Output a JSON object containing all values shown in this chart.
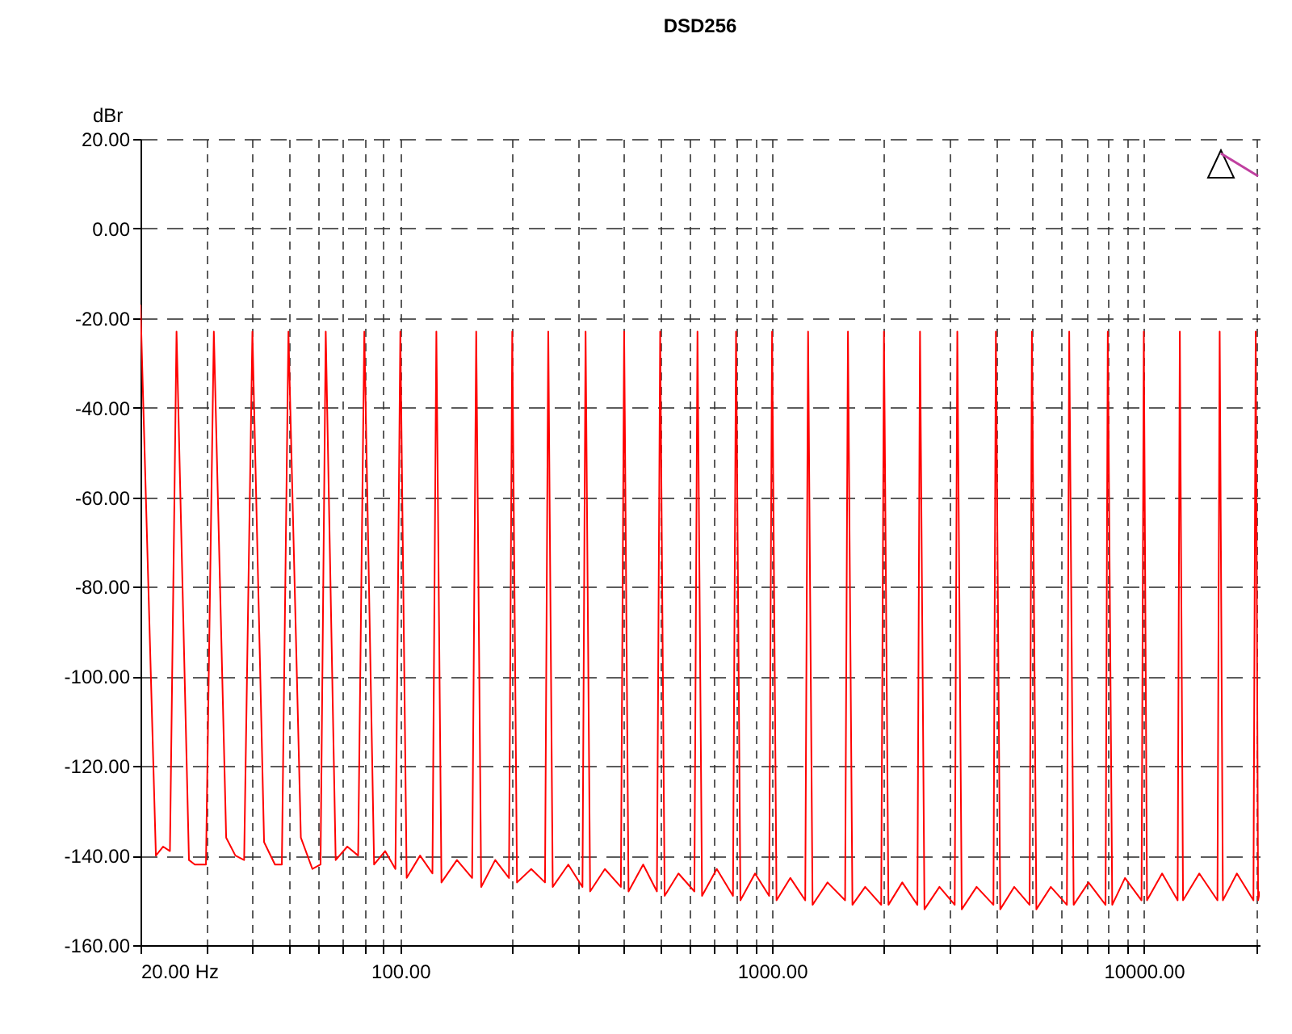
{
  "chart_data": {
    "type": "line",
    "title": "DSD256",
    "ylabel": "dBr",
    "x": [
      20,
      22,
      23,
      24,
      25,
      27,
      28,
      30,
      31.5,
      34,
      36,
      38,
      40,
      43,
      46,
      48,
      50,
      54,
      58,
      61,
      63,
      67,
      72,
      77,
      80,
      85,
      91,
      97,
      100,
      104,
      113,
      122,
      125,
      129,
      142,
      156,
      160,
      165,
      180,
      196,
      200,
      206,
      225,
      245,
      250,
      257,
      283,
      309,
      315,
      324,
      355,
      392,
      400,
      411,
      450,
      490,
      500,
      514,
      560,
      618,
      630,
      648,
      710,
      785,
      800,
      822,
      900,
      982,
      1000,
      1028,
      1120,
      1228,
      1250,
      1285,
      1410,
      1572,
      1600,
      1645,
      1780,
      1966,
      2000,
      2056,
      2240,
      2460,
      2500,
      2570,
      2820,
      3100,
      3150,
      3238,
      3550,
      3940,
      4000,
      4110,
      4480,
      4930,
      5000,
      5140,
      5620,
      6210,
      6300,
      6476,
      7100,
      7890,
      8000,
      8224,
      8900,
      9860,
      10000,
      10200,
      11200,
      12330,
      12500,
      12750,
      14100,
      15780,
      16000,
      16320,
      17800,
      19720,
      20000,
      20300,
      20500
    ],
    "series": [
      {
        "color": "#ff0000",
        "values": [
          -17,
          -140,
          -138,
          -139,
          -23,
          -141,
          -142,
          -142,
          -23,
          -136,
          -140,
          -141,
          -23,
          -137,
          -142,
          -142,
          -23,
          -136,
          -143,
          -142,
          -23,
          -141,
          -138,
          -140,
          -23,
          -142,
          -139,
          -143,
          -23,
          -145,
          -140,
          -144,
          -23,
          -146,
          -141,
          -145,
          -23,
          -147,
          -141,
          -145,
          -23,
          -146,
          -143,
          -146,
          -23,
          -147,
          -142,
          -147,
          -23,
          -148,
          -143,
          -147,
          -23,
          -148,
          -142,
          -148,
          -23,
          -149,
          -144,
          -148,
          -23,
          -149,
          -143,
          -149,
          -23,
          -150,
          -144,
          -149,
          -23,
          -150,
          -145,
          -150,
          -23,
          -151,
          -146,
          -150,
          -23,
          -151,
          -147,
          -151,
          -23,
          -151,
          -146,
          -151,
          -23,
          -152,
          -147,
          -151,
          -23,
          -152,
          -147,
          -151,
          -23,
          -152,
          -147,
          -151,
          -23,
          -152,
          -147,
          -151,
          -23,
          -151,
          -146,
          -151,
          -23,
          -151,
          -145,
          -150,
          -23,
          -150,
          -144,
          -150,
          -23,
          -150,
          -144,
          -150,
          -23,
          -150,
          -144,
          -150,
          -23,
          -150,
          -148
        ]
      }
    ],
    "log": "x",
    "grid": true,
    "legend": false,
    "line_style": "solid",
    "marker": "none",
    "xlim": [
      20,
      20500
    ],
    "xticks": [
      {
        "value": 20,
        "label": "20.00 Hz"
      },
      {
        "value": 30,
        "label": null
      },
      {
        "value": 40,
        "label": null
      },
      {
        "value": 50,
        "label": null
      },
      {
        "value": 60,
        "label": null
      },
      {
        "value": 70,
        "label": null
      },
      {
        "value": 80,
        "label": null
      },
      {
        "value": 90,
        "label": null
      },
      {
        "value": 100,
        "label": "100.00"
      },
      {
        "value": 200,
        "label": null
      },
      {
        "value": 300,
        "label": null
      },
      {
        "value": 400,
        "label": null
      },
      {
        "value": 500,
        "label": null
      },
      {
        "value": 600,
        "label": null
      },
      {
        "value": 700,
        "label": null
      },
      {
        "value": 800,
        "label": null
      },
      {
        "value": 900,
        "label": null
      },
      {
        "value": 1000,
        "label": "1000.00"
      },
      {
        "value": 2000,
        "label": null
      },
      {
        "value": 3000,
        "label": null
      },
      {
        "value": 4000,
        "label": null
      },
      {
        "value": 5000,
        "label": null
      },
      {
        "value": 6000,
        "label": null
      },
      {
        "value": 7000,
        "label": null
      },
      {
        "value": 8000,
        "label": null
      },
      {
        "value": 9000,
        "label": null
      },
      {
        "value": 10000,
        "label": "10000.00"
      },
      {
        "value": 20000,
        "label": null
      }
    ],
    "ylim": [
      -160,
      20
    ],
    "yticks": [
      {
        "value": 20,
        "label": "20.00"
      },
      {
        "value": 0,
        "label": "0.00"
      },
      {
        "value": -20,
        "label": "-20.00"
      },
      {
        "value": -40,
        "label": "-40.00"
      },
      {
        "value": -60,
        "label": "-60.00"
      },
      {
        "value": -80,
        "label": "-80.00"
      },
      {
        "value": -100,
        "label": "-100.00"
      },
      {
        "value": -120,
        "label": "-120.00"
      },
      {
        "value": -140,
        "label": "-140.00"
      },
      {
        "value": -160,
        "label": "-160.00"
      }
    ]
  }
}
